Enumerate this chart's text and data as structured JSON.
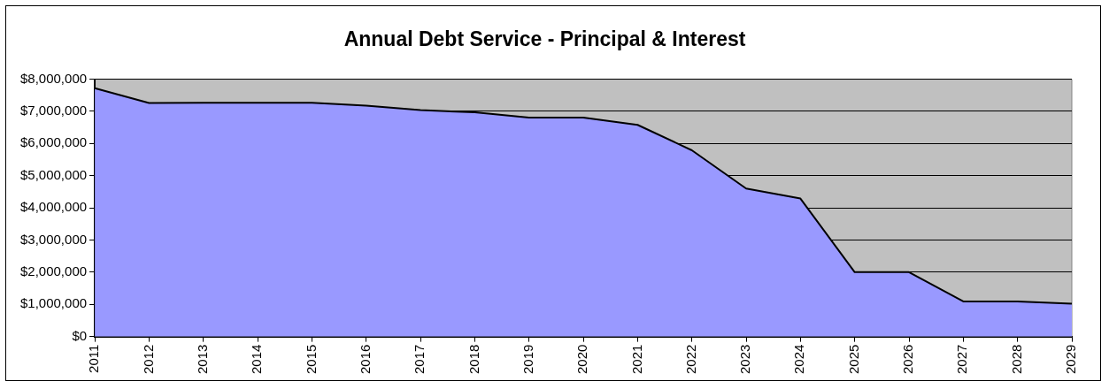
{
  "chart_data": {
    "type": "area",
    "title": "Annual Debt Service - Principal & Interest",
    "categories": [
      "2011",
      "2012",
      "2013",
      "2014",
      "2015",
      "2016",
      "2017",
      "2018",
      "2019",
      "2020",
      "2021",
      "2022",
      "2023",
      "2024",
      "2025",
      "2026",
      "2027",
      "2028",
      "2029"
    ],
    "series": [
      {
        "color": "#9999ff",
        "values": [
          7720000,
          7260000,
          7270000,
          7270000,
          7270000,
          7180000,
          7040000,
          6970000,
          6810000,
          6810000,
          6580000,
          5790000,
          4600000,
          4290000,
          2000000,
          2000000,
          1090000,
          1090000,
          1020000
        ]
      }
    ],
    "ylim": [
      0,
      8000000
    ],
    "yticks": [
      {
        "value": 0,
        "label": "$0"
      },
      {
        "value": 1000000,
        "label": "$1,000,000"
      },
      {
        "value": 2000000,
        "label": "$2,000,000"
      },
      {
        "value": 3000000,
        "label": "$3,000,000"
      },
      {
        "value": 4000000,
        "label": "$4,000,000"
      },
      {
        "value": 5000000,
        "label": "$5,000,000"
      },
      {
        "value": 6000000,
        "label": "$6,000,000"
      },
      {
        "value": 7000000,
        "label": "$7,000,000"
      },
      {
        "value": 8000000,
        "label": "$8,000,000"
      }
    ],
    "grid": "y",
    "legend": false
  }
}
